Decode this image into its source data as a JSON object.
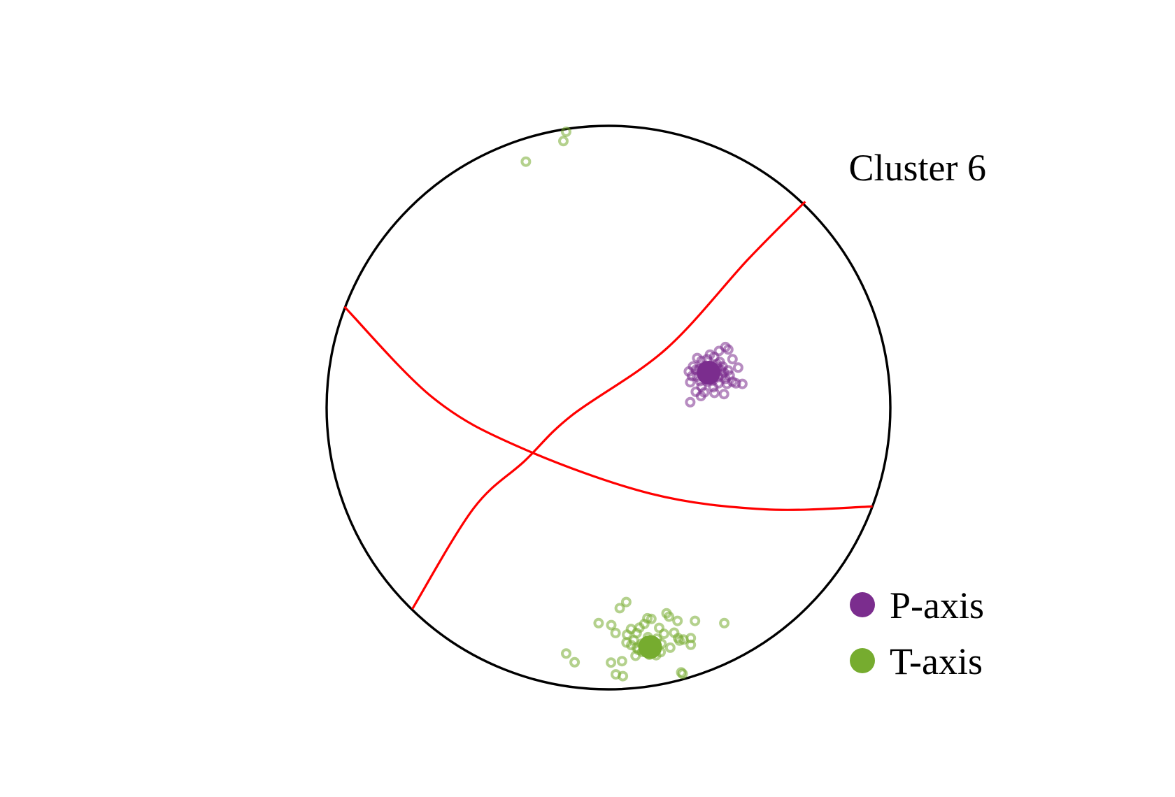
{
  "chart_data": {
    "type": "scatter",
    "projection": "lower-hemisphere stereonet",
    "title": "Cluster 6",
    "grid": false,
    "legend_position": "bottom-right",
    "colors": {
      "p_axis": "#7B2D8E",
      "t_axis": "#76AC2F",
      "nodal_planes": "#FF0000",
      "net_outline": "#000000"
    },
    "legend": [
      {
        "key": "p_axis",
        "label": "P-axis"
      },
      {
        "key": "t_axis",
        "label": "T-axis"
      }
    ],
    "nodal_planes": [
      {
        "name": "plane-1",
        "points": [
          [
            0.698,
            0.731
          ],
          [
            0.495,
            0.526
          ],
          [
            0.202,
            0.206
          ],
          [
            -0.132,
            -0.029
          ],
          [
            -0.297,
            -0.189
          ],
          [
            -0.479,
            -0.358
          ],
          [
            -0.696,
            -0.715
          ]
        ]
      },
      {
        "name": "plane-2",
        "points": [
          [
            -0.937,
            0.358
          ],
          [
            -0.623,
            0.035
          ],
          [
            -0.312,
            -0.142
          ],
          [
            0.148,
            -0.305
          ],
          [
            0.555,
            -0.361
          ],
          [
            0.937,
            -0.351
          ]
        ]
      }
    ],
    "series": [
      {
        "key": "p_axis",
        "mean": [
          0.355,
          0.124
        ],
        "points": [
          [
            0.285,
            0.128
          ],
          [
            0.3,
            0.146
          ],
          [
            0.315,
            0.11
          ],
          [
            0.33,
            0.166
          ],
          [
            0.355,
            0.144
          ],
          [
            0.375,
            0.18
          ],
          [
            0.385,
            0.154
          ],
          [
            0.41,
            0.124
          ],
          [
            0.42,
            0.084
          ],
          [
            0.44,
            0.172
          ],
          [
            0.46,
            0.142
          ],
          [
            0.425,
            0.132
          ],
          [
            0.39,
            0.108
          ],
          [
            0.37,
            0.096
          ],
          [
            0.35,
            0.092
          ],
          [
            0.33,
            0.074
          ],
          [
            0.31,
            0.056
          ],
          [
            0.29,
            0.09
          ],
          [
            0.31,
            0.134
          ],
          [
            0.36,
            0.188
          ],
          [
            0.395,
            0.162
          ],
          [
            0.405,
            0.146
          ],
          [
            0.43,
            0.114
          ],
          [
            0.415,
            0.102
          ],
          [
            0.39,
            0.086
          ],
          [
            0.345,
            0.114
          ],
          [
            0.315,
            0.176
          ],
          [
            0.38,
            0.127
          ],
          [
            0.34,
            0.148
          ],
          [
            0.365,
            0.116
          ],
          [
            0.4,
            0.132
          ],
          [
            0.325,
            0.094
          ],
          [
            0.296,
            0.112
          ],
          [
            0.34,
            0.054
          ],
          [
            0.376,
            0.052
          ],
          [
            0.29,
            0.019
          ],
          [
            0.328,
            0.041
          ],
          [
            0.41,
            0.048
          ],
          [
            0.44,
            0.092
          ],
          [
            0.425,
            0.206
          ],
          [
            0.415,
            0.215
          ],
          [
            0.392,
            0.201
          ],
          [
            0.475,
            0.084
          ],
          [
            0.452,
            0.086
          ],
          [
            0.36,
            0.138
          ],
          [
            0.387,
            0.143
          ],
          [
            0.402,
            0.115
          ],
          [
            0.321,
            0.136
          ],
          [
            0.372,
            0.072
          ],
          [
            0.35,
            0.172
          ]
        ]
      },
      {
        "key": "t_axis",
        "mean": [
          0.148,
          -0.85
        ],
        "points": [
          [
            0.063,
            -0.69
          ],
          [
            0.04,
            -0.712
          ],
          [
            0.138,
            -0.748
          ],
          [
            0.152,
            -0.75
          ],
          [
            0.206,
            -0.73
          ],
          [
            0.215,
            -0.742
          ],
          [
            0.245,
            -0.757
          ],
          [
            0.307,
            -0.757
          ],
          [
            0.411,
            -0.765
          ],
          [
            -0.035,
            -0.765
          ],
          [
            0.01,
            -0.772
          ],
          [
            0.08,
            -0.786
          ],
          [
            0.127,
            -0.768
          ],
          [
            0.11,
            -0.781
          ],
          [
            0.18,
            -0.782
          ],
          [
            0.233,
            -0.799
          ],
          [
            0.025,
            -0.8
          ],
          [
            0.066,
            -0.806
          ],
          [
            0.1,
            -0.8
          ],
          [
            0.197,
            -0.803
          ],
          [
            0.247,
            -0.818
          ],
          [
            0.266,
            -0.823
          ],
          [
            0.292,
            -0.818
          ],
          [
            0.09,
            -0.826
          ],
          [
            0.081,
            -0.843
          ],
          [
            0.13,
            -0.842
          ],
          [
            0.16,
            -0.832
          ],
          [
            0.252,
            -0.827
          ],
          [
            0.064,
            -0.834
          ],
          [
            0.292,
            -0.842
          ],
          [
            0.12,
            -0.867
          ],
          [
            0.106,
            -0.86
          ],
          [
            0.1,
            -0.852
          ],
          [
            0.185,
            -0.868
          ],
          [
            0.219,
            -0.852
          ],
          [
            0.009,
            -0.905
          ],
          [
            0.096,
            -0.881
          ],
          [
            0.145,
            -0.877
          ],
          [
            0.169,
            -0.879
          ],
          [
            0.153,
            -0.869
          ],
          [
            0.051,
            -0.953
          ],
          [
            0.026,
            -0.947
          ],
          [
            0.263,
            -0.945
          ],
          [
            0.258,
            -0.94
          ],
          [
            -0.12,
            -0.904
          ],
          [
            -0.15,
            -0.873
          ],
          [
            0.188,
            -0.838
          ],
          [
            0.14,
            -0.815
          ],
          [
            -0.293,
            0.873
          ],
          [
            -0.16,
            0.946
          ],
          [
            -0.15,
            0.979
          ],
          [
            0.048,
            -0.9
          ],
          [
            0.172,
            -0.82
          ],
          [
            0.118,
            -0.838
          ]
        ]
      }
    ]
  }
}
